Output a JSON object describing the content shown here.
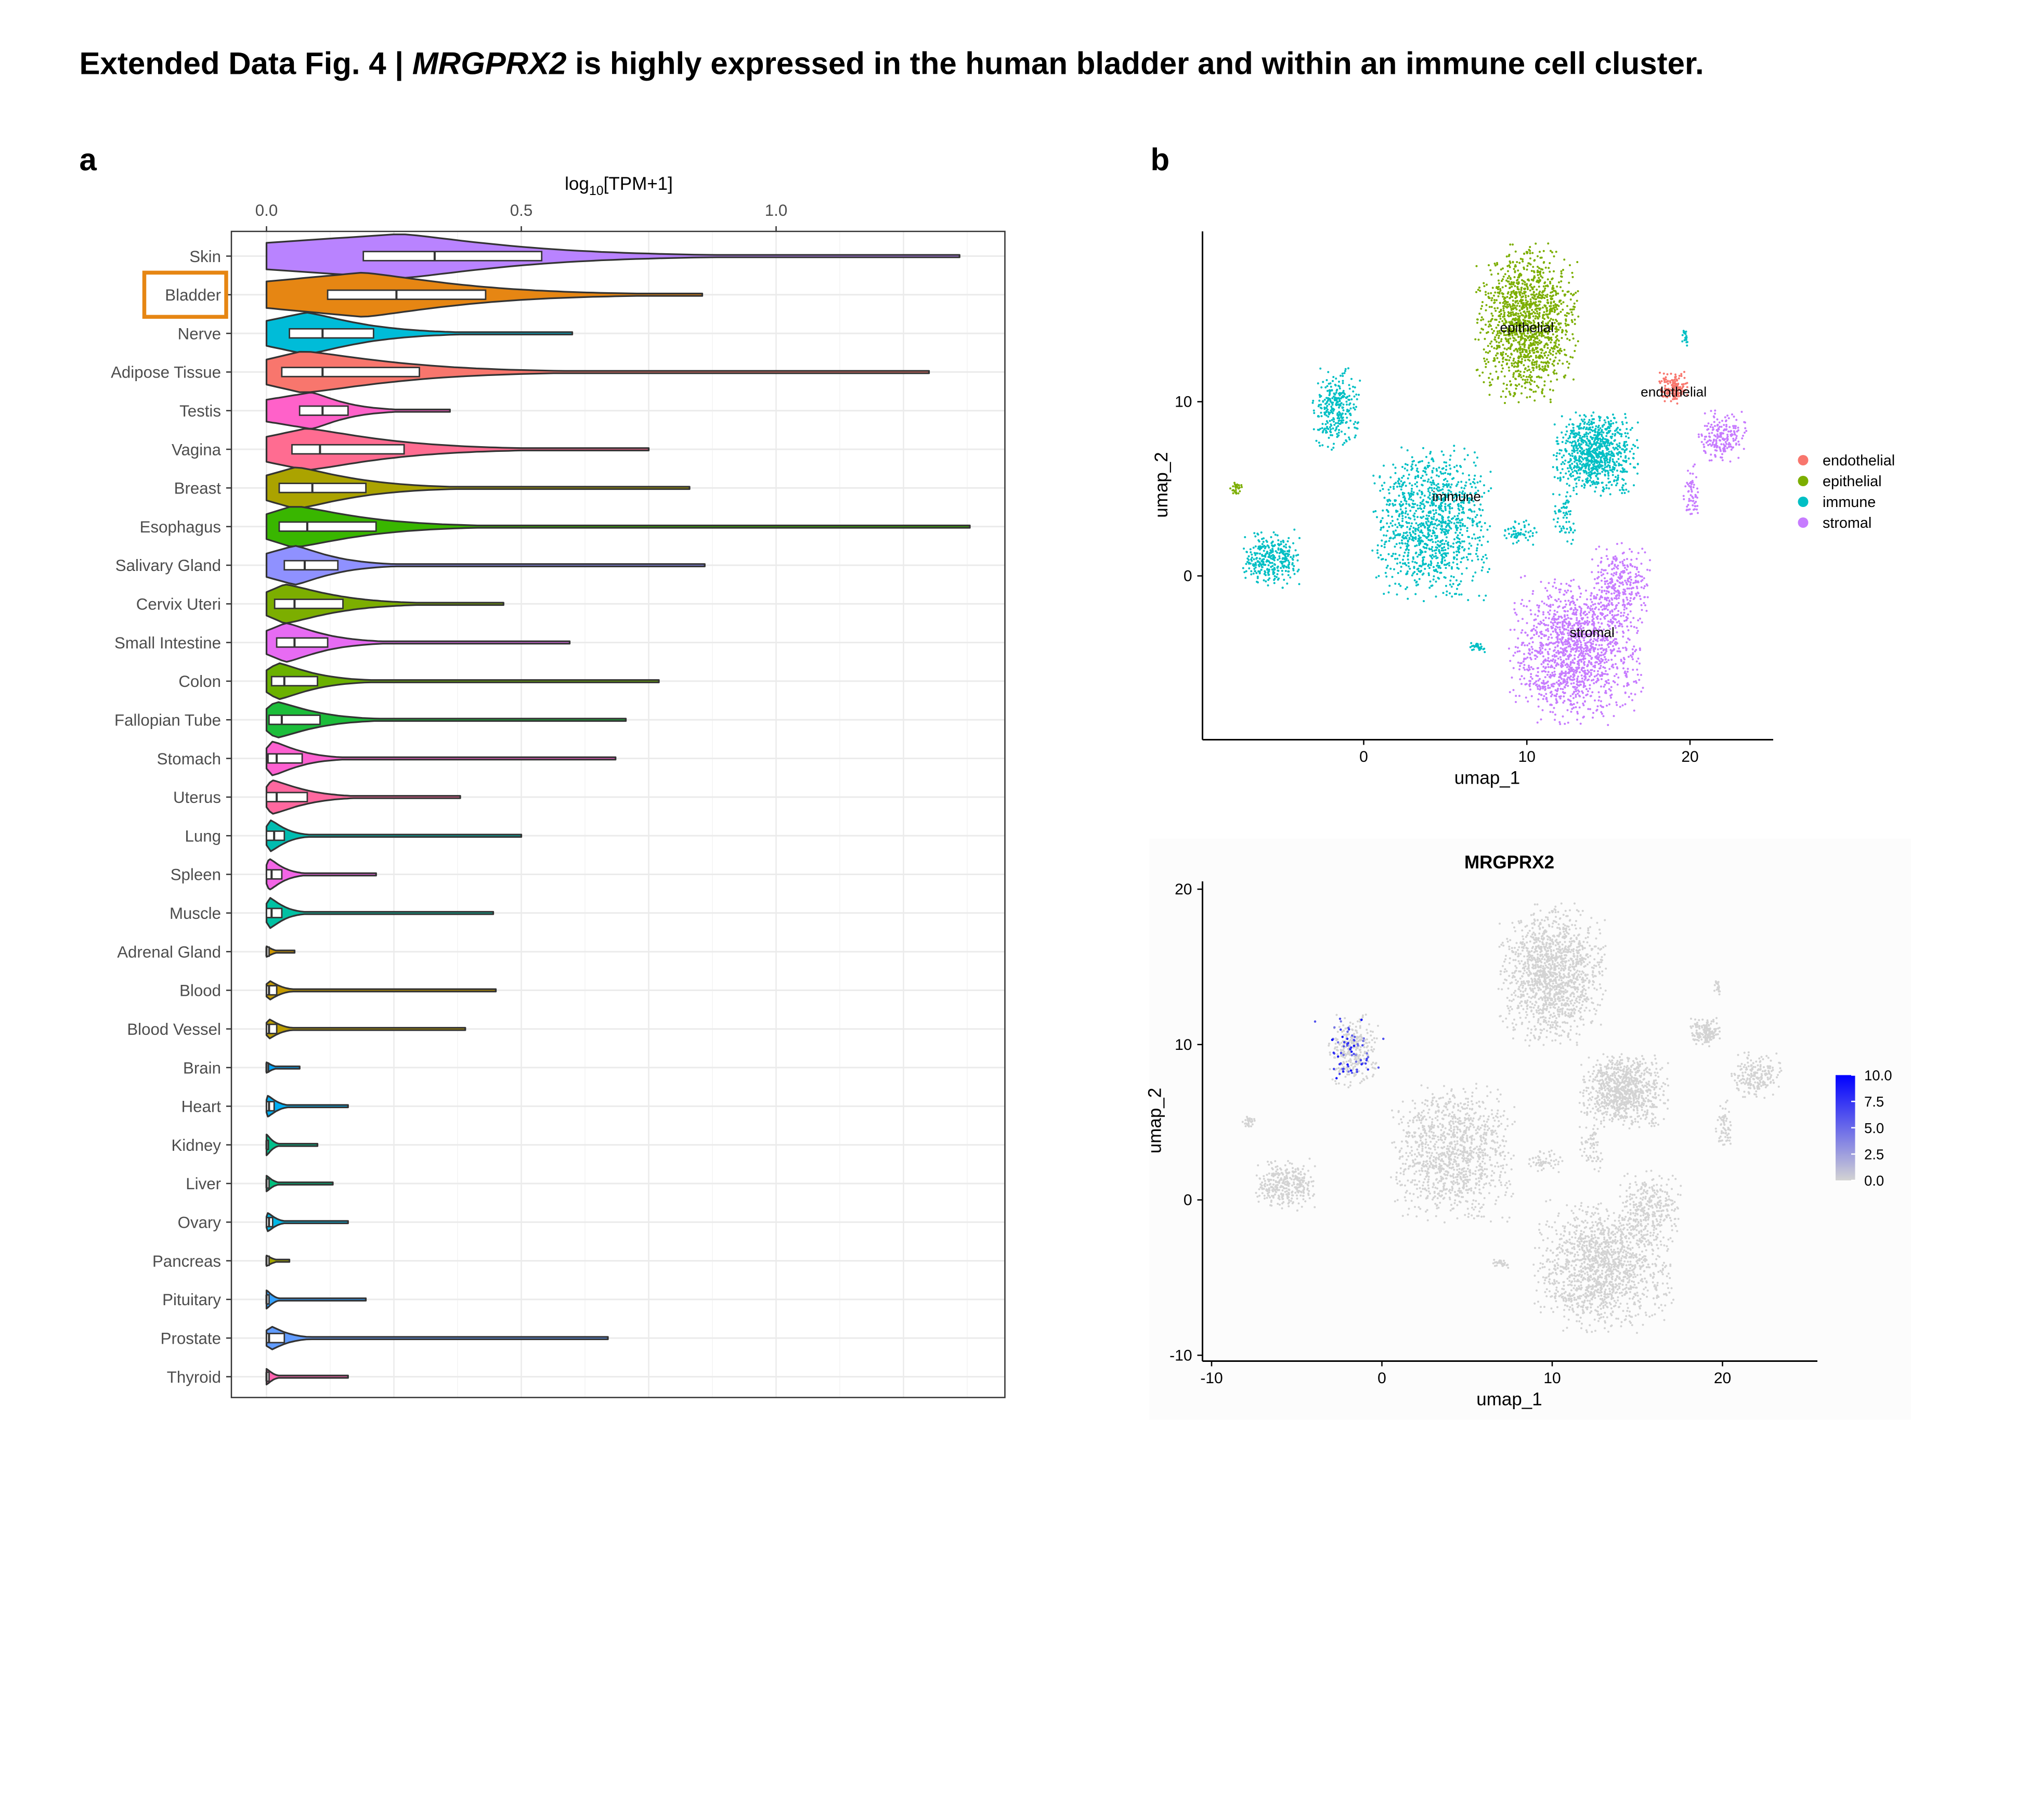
{
  "title": {
    "prefix": "Extended Data Fig. 4 | ",
    "gene": "MRGPRX2",
    "suffix": " is highly expressed in the human bladder and within an immune cell cluster."
  },
  "panel_labels": {
    "a": "a",
    "b": "b"
  },
  "highlight_color": "#E68613",
  "chart_data": [
    {
      "type": "violin",
      "panel": "a",
      "xlabel_main": "log",
      "xlabel_sub": "10",
      "xlabel_rest": "[TPM+1]",
      "xlim": [
        -0.07,
        1.45
      ],
      "xticks": [
        0.0,
        0.5,
        1.0
      ],
      "xtick_labels": [
        "0.0",
        "0.5",
        "1.0"
      ],
      "highlighted": "Bladder",
      "grid": true,
      "categories": [
        {
          "name": "Skin",
          "q1": 0.19,
          "median": 0.33,
          "q3": 0.54,
          "max": 1.36,
          "color": "#B983FF",
          "w": 17
        },
        {
          "name": "Bladder",
          "q1": 0.12,
          "median": 0.255,
          "q3": 0.43,
          "max": 0.855,
          "color": "#E68613",
          "w": 17
        },
        {
          "name": "Nerve",
          "q1": 0.045,
          "median": 0.11,
          "q3": 0.21,
          "max": 0.6,
          "color": "#00BCD8",
          "w": 16
        },
        {
          "name": "Adipose Tissue",
          "q1": 0.03,
          "median": 0.11,
          "q3": 0.3,
          "max": 1.3,
          "color": "#F8766D",
          "w": 16
        },
        {
          "name": "Testis",
          "q1": 0.065,
          "median": 0.11,
          "q3": 0.16,
          "max": 0.36,
          "color": "#FF61C9",
          "w": 14
        },
        {
          "name": "Vagina",
          "q1": 0.05,
          "median": 0.105,
          "q3": 0.27,
          "max": 0.75,
          "color": "#FF6C91",
          "w": 16
        },
        {
          "name": "Breast",
          "q1": 0.025,
          "median": 0.09,
          "q3": 0.195,
          "max": 0.83,
          "color": "#ABA300",
          "w": 16
        },
        {
          "name": "Esophagus",
          "q1": 0.025,
          "median": 0.08,
          "q3": 0.215,
          "max": 1.38,
          "color": "#39B600",
          "w": 16
        },
        {
          "name": "Salivary Gland",
          "q1": 0.035,
          "median": 0.075,
          "q3": 0.14,
          "max": 0.86,
          "color": "#8F91FF",
          "w": 15
        },
        {
          "name": "Cervix Uteri",
          "q1": 0.016,
          "median": 0.055,
          "q3": 0.15,
          "max": 0.465,
          "color": "#7CAE00",
          "w": 15
        },
        {
          "name": "Small Intestine",
          "q1": 0.02,
          "median": 0.055,
          "q3": 0.12,
          "max": 0.595,
          "color": "#E76BF3",
          "w": 15
        },
        {
          "name": "Colon",
          "q1": 0.01,
          "median": 0.035,
          "q3": 0.1,
          "max": 0.77,
          "color": "#6BB100",
          "w": 14
        },
        {
          "name": "Fallopian Tube",
          "q1": 0.005,
          "median": 0.03,
          "q3": 0.105,
          "max": 0.705,
          "color": "#1CBD3A",
          "w": 14
        },
        {
          "name": "Stomach",
          "q1": 0.003,
          "median": 0.02,
          "q3": 0.07,
          "max": 0.685,
          "color": "#FD61D1",
          "w": 13
        },
        {
          "name": "Uterus",
          "q1": 0.0,
          "median": 0.02,
          "q3": 0.08,
          "max": 0.38,
          "color": "#FF689F",
          "w": 13
        },
        {
          "name": "Lung",
          "q1": 0.0,
          "median": 0.015,
          "q3": 0.035,
          "max": 0.5,
          "color": "#00BCB0",
          "w": 12
        },
        {
          "name": "Spleen",
          "q1": 0.0,
          "median": 0.01,
          "q3": 0.03,
          "max": 0.215,
          "color": "#F365E6",
          "w": 12
        },
        {
          "name": "Muscle",
          "q1": 0.0,
          "median": 0.01,
          "q3": 0.03,
          "max": 0.445,
          "color": "#00C1A3",
          "w": 12
        },
        {
          "name": "Adrenal Gland",
          "q1": 0.0,
          "median": 0.0,
          "q3": 0.005,
          "max": 0.055,
          "color": "#CD9600",
          "w": 4
        },
        {
          "name": "Blood",
          "q1": 0.0,
          "median": 0.005,
          "q3": 0.02,
          "max": 0.45,
          "color": "#C49A00",
          "w": 8
        },
        {
          "name": "Blood Vessel",
          "q1": 0.0,
          "median": 0.005,
          "q3": 0.02,
          "max": 0.39,
          "color": "#BB9D00",
          "w": 8
        },
        {
          "name": "Brain",
          "q1": 0.0,
          "median": 0.0,
          "q3": 0.003,
          "max": 0.065,
          "color": "#00A5FF",
          "w": 4
        },
        {
          "name": "Heart",
          "q1": 0.0,
          "median": 0.005,
          "q3": 0.015,
          "max": 0.16,
          "color": "#00B0F6",
          "w": 8
        },
        {
          "name": "Kidney",
          "q1": 0.0,
          "median": 0.0,
          "q3": 0.003,
          "max": 0.1,
          "color": "#00C08B",
          "w": 8
        },
        {
          "name": "Liver",
          "q1": 0.0,
          "median": 0.0,
          "q3": 0.005,
          "max": 0.13,
          "color": "#00BF7D",
          "w": 6
        },
        {
          "name": "Ovary",
          "q1": 0.0,
          "median": 0.005,
          "q3": 0.012,
          "max": 0.16,
          "color": "#00B8E7",
          "w": 7
        },
        {
          "name": "Pancreas",
          "q1": 0.0,
          "median": 0.0,
          "q3": 0.005,
          "max": 0.045,
          "color": "#A3A500",
          "w": 4
        },
        {
          "name": "Pituitary",
          "q1": 0.0,
          "median": 0.0,
          "q3": 0.005,
          "max": 0.195,
          "color": "#35A2FF",
          "w": 7
        },
        {
          "name": "Prostate",
          "q1": 0.0,
          "median": 0.005,
          "q3": 0.035,
          "max": 0.67,
          "color": "#619CFF",
          "w": 10
        },
        {
          "name": "Thyroid",
          "q1": 0.0,
          "median": 0.0,
          "q3": 0.005,
          "max": 0.16,
          "color": "#FF64B0",
          "w": 6
        }
      ]
    },
    {
      "type": "scatter",
      "panel": "b-top",
      "xlabel": "umap_1",
      "ylabel": "umap_2",
      "xlim": [
        -9.9,
        25.1
      ],
      "ylim": [
        -9.4,
        19.8
      ],
      "xticks": [
        0,
        10,
        20
      ],
      "xtick_labels": [
        "0",
        "10",
        "20"
      ],
      "yticks": [
        0,
        10
      ],
      "ytick_labels": [
        "0",
        "10"
      ],
      "legend_position": "right",
      "legend": [
        {
          "label": "endothelial",
          "color": "#F8766D"
        },
        {
          "label": "epithelial",
          "color": "#7CAE00"
        },
        {
          "label": "immune",
          "color": "#00BFC4"
        },
        {
          "label": "stromal",
          "color": "#C77CFF"
        }
      ],
      "cluster_labels": [
        {
          "text": "epithelial",
          "x": 10,
          "y": 14
        },
        {
          "text": "endothelial",
          "x": 19,
          "y": 10.3
        },
        {
          "text": "immune",
          "x": 5.7,
          "y": 4.3
        },
        {
          "text": "stromal",
          "x": 14,
          "y": -3.5
        }
      ],
      "clusters": [
        {
          "type": 1,
          "cx": 10,
          "cy": 14.5,
          "sx": 1.7,
          "sy": 2.5,
          "n": 1400
        },
        {
          "type": 0,
          "cx": 19,
          "cy": 10.8,
          "sx": 0.5,
          "sy": 0.5,
          "n": 150
        },
        {
          "type": 2,
          "cx": -1.7,
          "cy": 9.6,
          "sx": 0.8,
          "sy": 1.3,
          "n": 300
        },
        {
          "type": 2,
          "cx": -5.7,
          "cy": 1,
          "sx": 1.0,
          "sy": 0.9,
          "n": 320
        },
        {
          "type": 2,
          "cx": 4.2,
          "cy": 3,
          "sx": 2.0,
          "sy": 2.4,
          "n": 1100
        },
        {
          "type": 2,
          "cx": 14.2,
          "cy": 7,
          "sx": 1.4,
          "sy": 1.3,
          "n": 850
        },
        {
          "type": 2,
          "cx": 9.5,
          "cy": 2.5,
          "sx": 0.6,
          "sy": 0.4,
          "n": 60
        },
        {
          "type": 2,
          "cx": 12.3,
          "cy": 3.3,
          "sx": 0.4,
          "sy": 0.8,
          "n": 60
        },
        {
          "type": 2,
          "cx": 19.7,
          "cy": 13.7,
          "sx": 0.12,
          "sy": 0.3,
          "n": 20
        },
        {
          "type": 2,
          "cx": 7,
          "cy": -4.1,
          "sx": 0.25,
          "sy": 0.2,
          "n": 30
        },
        {
          "type": 3,
          "cx": 13,
          "cy": -4.3,
          "sx": 2.2,
          "sy": 2.3,
          "n": 1400
        },
        {
          "type": 3,
          "cx": 15.7,
          "cy": -0.5,
          "sx": 1.0,
          "sy": 1.3,
          "n": 300
        },
        {
          "type": 3,
          "cx": 22,
          "cy": 8,
          "sx": 0.8,
          "sy": 0.8,
          "n": 200
        },
        {
          "type": 3,
          "cx": 20.1,
          "cy": 4.8,
          "sx": 0.3,
          "sy": 0.9,
          "n": 60
        },
        {
          "type": 1,
          "cx": -7.8,
          "cy": 5,
          "sx": 0.25,
          "sy": 0.2,
          "n": 30
        }
      ]
    },
    {
      "type": "scatter",
      "panel": "b-bottom",
      "title": "MRGPRX2",
      "xlabel": "umap_1",
      "ylabel": "umap_2",
      "xlim": [
        -10.5,
        25.5
      ],
      "ylim": [
        -10.4,
        20.3
      ],
      "xticks": [
        -10,
        0,
        10,
        20
      ],
      "xtick_labels": [
        "-10",
        "0",
        "10",
        "20"
      ],
      "yticks": [
        -10,
        0,
        10,
        20
      ],
      "ytick_labels": [
        "-10",
        "0",
        "10",
        "20"
      ],
      "color_scale": {
        "low": "#D3D3D3",
        "high": "#0000FF",
        "min": 0,
        "max": 10,
        "ticks": [
          10.0,
          7.5,
          5.0,
          2.5,
          0.0
        ],
        "tick_labels": [
          "10.0",
          "7.5",
          "5.0",
          "2.5",
          "0.0"
        ]
      },
      "expressing_cluster": {
        "cx": -1.7,
        "cy": 9.6,
        "n": 70,
        "value_range": [
          4,
          10
        ]
      }
    }
  ]
}
